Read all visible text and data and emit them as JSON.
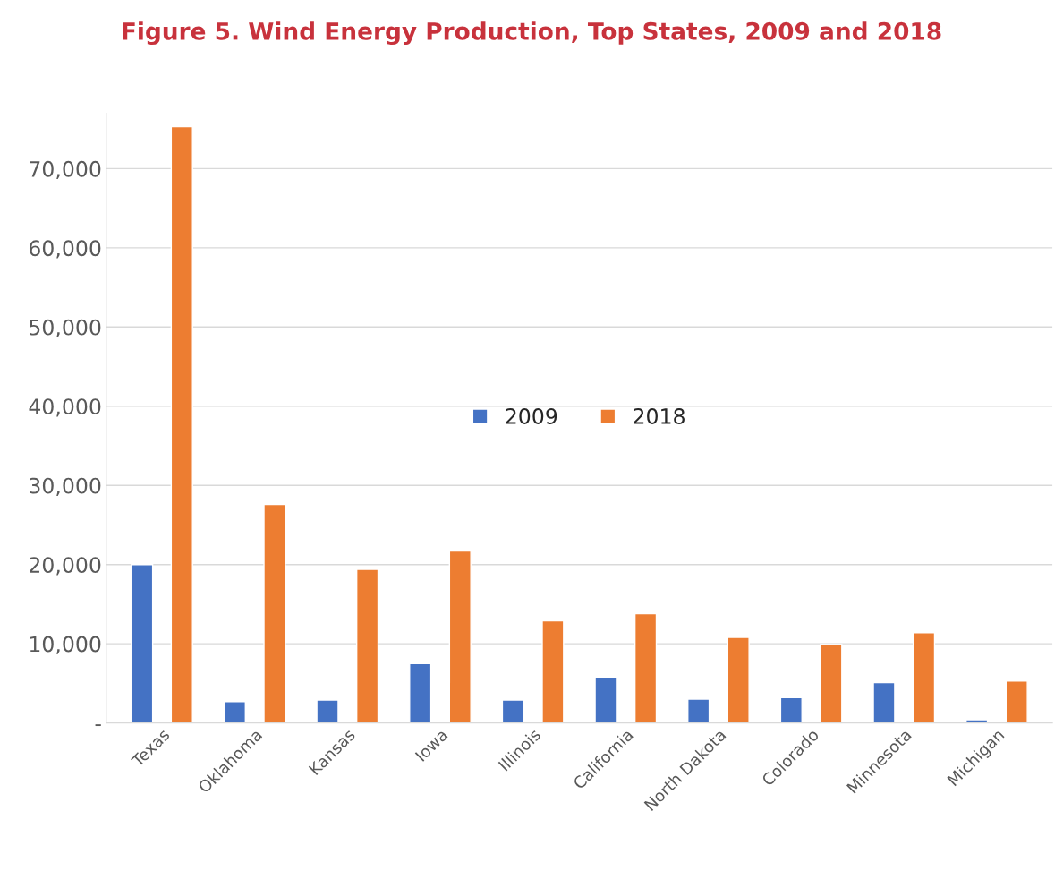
{
  "chart_data": {
    "type": "bar",
    "title": "Figure 5. Wind Energy Production, Top States, 2009 and 2018",
    "categories": [
      "Texas",
      "Oklahoma",
      "Kansas",
      "Iowa",
      "Illinois",
      "California",
      "North Dakota",
      "Colorado",
      "Minnesota",
      "Michigan"
    ],
    "series": [
      {
        "name": "2009",
        "color": "#4472c4",
        "values": [
          20000,
          2700,
          2900,
          7500,
          2900,
          5800,
          3000,
          3200,
          5100,
          400
        ]
      },
      {
        "name": "2018",
        "color": "#ed7d31",
        "values": [
          75300,
          27600,
          19400,
          21700,
          12900,
          13800,
          10800,
          9900,
          11400,
          5300
        ]
      }
    ],
    "ylim": [
      0,
      77000
    ],
    "yticks": [
      {
        "value": 0,
        "label": "-"
      },
      {
        "value": 10000,
        "label": "10,000"
      },
      {
        "value": 20000,
        "label": "20,000"
      },
      {
        "value": 30000,
        "label": "30,000"
      },
      {
        "value": 40000,
        "label": "40,000"
      },
      {
        "value": 50000,
        "label": "50,000"
      },
      {
        "value": 60000,
        "label": "60,000"
      },
      {
        "value": 70000,
        "label": "70,000"
      }
    ],
    "grid": "y",
    "legend": "center"
  }
}
